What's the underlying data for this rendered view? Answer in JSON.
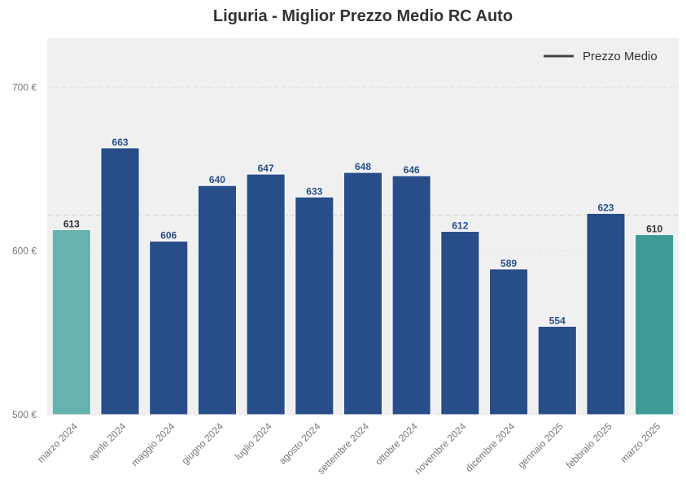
{
  "chart_data": {
    "type": "bar",
    "title": "Liguria - Miglior Prezzo Medio RC Auto",
    "xlabel": "",
    "ylabel": "",
    "categories": [
      "marzo 2024",
      "aprile 2024",
      "maggio 2024",
      "giugno 2024",
      "luglio 2024",
      "agosto 2024",
      "settembre 2024",
      "ottobre 2024",
      "novembre 2024",
      "dicembre 2024",
      "gennaio 2025",
      "febbraio 2025",
      "marzo 2025"
    ],
    "values": [
      613,
      663,
      606,
      640,
      647,
      633,
      648,
      646,
      612,
      589,
      554,
      623,
      610
    ],
    "value_labels": [
      "613",
      "663",
      "606",
      "640",
      "647",
      "633",
      "648",
      "646",
      "612",
      "589",
      "554",
      "623",
      "610"
    ],
    "ylim": [
      500,
      730
    ],
    "yticks": [
      500,
      600,
      700
    ],
    "ytick_labels": [
      "500 €",
      "600 €",
      "700 €"
    ],
    "average": 621.8,
    "legend": {
      "label": "Prezzo Medio",
      "position": "top-right"
    },
    "grid": true,
    "colors": {
      "default_bar": "#284e8a",
      "first_bar": "#66b2ae",
      "last_bar": "#3a9c94",
      "default_label": "#284e8a",
      "highlight_label": "#333333",
      "plot_bg": "#f0f0f0",
      "average_line": "#cccccc"
    }
  }
}
